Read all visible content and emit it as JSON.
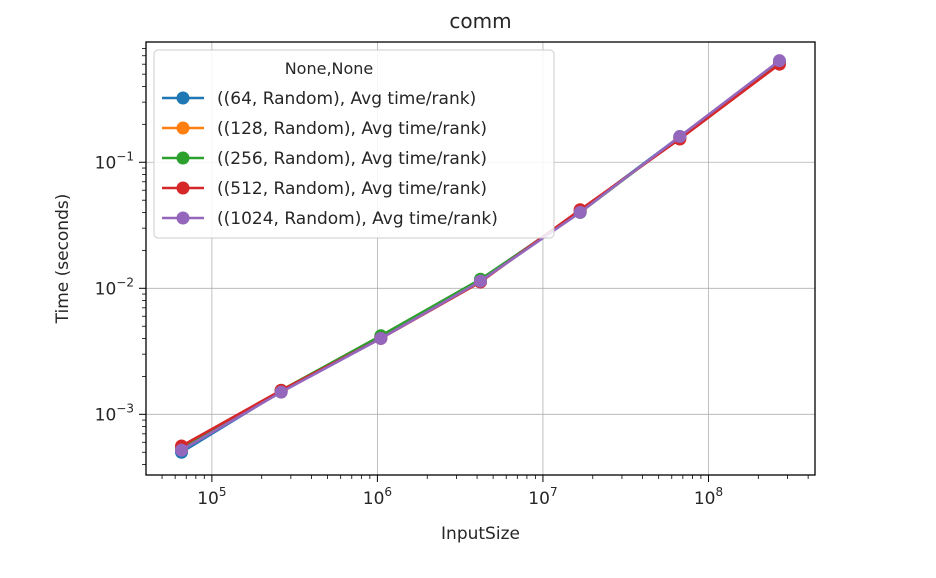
{
  "chart_data": {
    "type": "line",
    "title": "comm",
    "xlabel": "InputSize",
    "ylabel": "Time (seconds)",
    "xscale": "log",
    "yscale": "log",
    "xlim": [
      40000,
      440000000
    ],
    "ylim": [
      0.00033,
      0.9
    ],
    "grid": true,
    "legend": {
      "title": "None,None",
      "placement": "upper-left"
    },
    "x_ticks": [
      {
        "value": 100000,
        "base": "10",
        "exp": "5"
      },
      {
        "value": 1000000,
        "base": "10",
        "exp": "6"
      },
      {
        "value": 10000000,
        "base": "10",
        "exp": "7"
      },
      {
        "value": 100000000,
        "base": "10",
        "exp": "8"
      }
    ],
    "y_ticks": [
      {
        "value": 0.001,
        "base": "10",
        "exp": "−3"
      },
      {
        "value": 0.01,
        "base": "10",
        "exp": "−2"
      },
      {
        "value": 0.1,
        "base": "10",
        "exp": "−1"
      }
    ],
    "x": [
      65536,
      262144,
      1048576,
      4194304,
      16777216,
      67108864,
      268435456
    ],
    "series": [
      {
        "name": "((64, Random), Avg time/rank)",
        "color": "#1f77b4",
        "values": [
          0.0005,
          0.00152,
          0.0041,
          0.0117,
          0.041,
          0.16,
          0.63
        ]
      },
      {
        "name": "((128, Random), Avg time/rank)",
        "color": "#ff7f0e",
        "values": [
          0.00053,
          0.00155,
          0.0041,
          0.0116,
          0.041,
          0.157,
          0.615
        ]
      },
      {
        "name": "((256, Random), Avg time/rank)",
        "color": "#2ca02c",
        "values": [
          0.00053,
          0.00155,
          0.0042,
          0.0118,
          0.04,
          0.158,
          0.62
        ]
      },
      {
        "name": "((512, Random), Avg time/rank)",
        "color": "#d62728",
        "values": [
          0.00056,
          0.00155,
          0.004,
          0.0112,
          0.042,
          0.153,
          0.6
        ]
      },
      {
        "name": "((1024, Random), Avg time/rank)",
        "color": "#9467bd",
        "values": [
          0.00052,
          0.0015,
          0.004,
          0.0114,
          0.04,
          0.16,
          0.64
        ]
      }
    ]
  }
}
